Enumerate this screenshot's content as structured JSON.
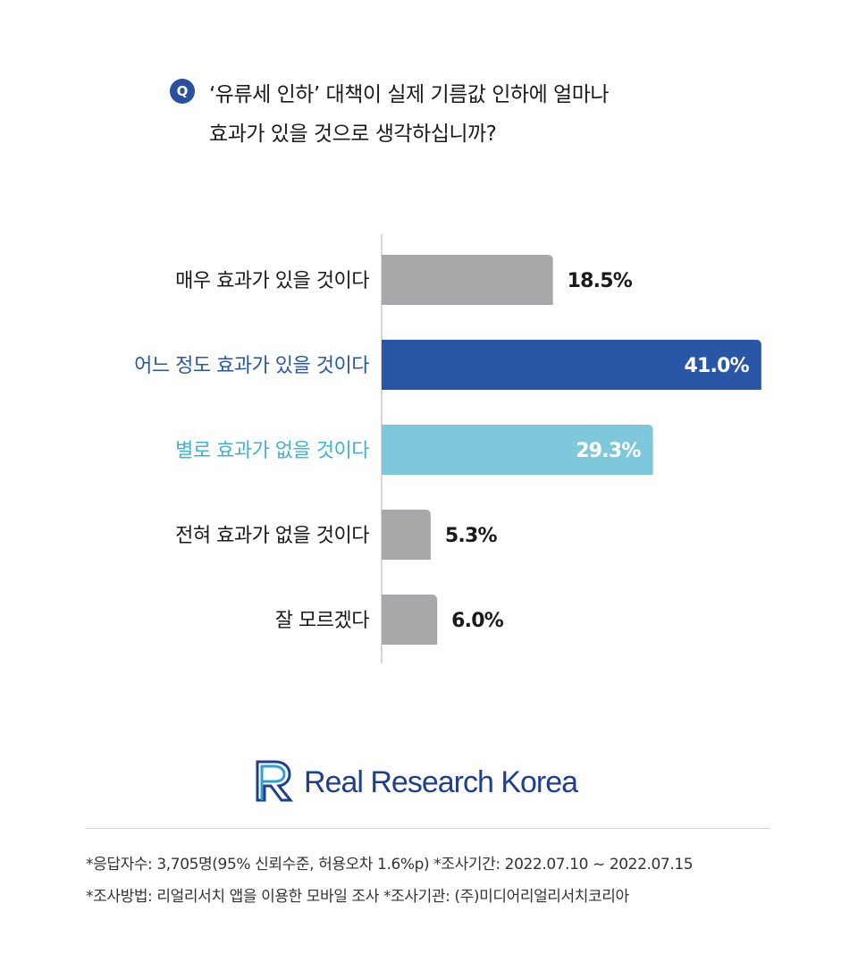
{
  "question": {
    "badge": "Q",
    "line1": "‘유류세 인하’ 대책이 실제 기름값 인하에 얼마나",
    "line2": "효과가 있을 것으로 생각하십니까?"
  },
  "chart_data": {
    "type": "bar",
    "orientation": "horizontal",
    "categories": [
      "매우 효과가 있을 것이다",
      "어느 정도 효과가 있을 것이다",
      "별로 효과가 없을 것이다",
      "전혀 효과가 없을 것이다",
      "잘 모르겠다"
    ],
    "values": [
      18.5,
      41.0,
      29.3,
      5.3,
      6.0
    ],
    "value_labels": [
      "18.5%",
      "41.0%",
      "29.3%",
      "5.3%",
      "6.0%"
    ],
    "bar_colors": [
      "#a8a8aa",
      "#2a56a8",
      "#7ec8dc",
      "#a8a8aa",
      "#a8a8aa"
    ],
    "label_colors": [
      "#1a1a1a",
      "#2a56a8",
      "#3fb4d0",
      "#1a1a1a",
      "#1a1a1a"
    ],
    "value_label_inside": [
      false,
      true,
      true,
      false,
      false
    ],
    "xlim": [
      0,
      41.5
    ],
    "grid": false
  },
  "logo": {
    "text": "Real Research Korea",
    "color": "#1f3f8e",
    "accent": "#2e9fd6"
  },
  "footnotes": {
    "line1": "*응답자수: 3,705명(95% 신뢰수준, 허용오차 1.6%p)  *조사기간: 2022.07.10 ~ 2022.07.15",
    "line2": "*조사방법: 리얼리서치 앱을 이용한 모바일 조사  *조사기관: (주)미디어리얼리서치코리아"
  }
}
